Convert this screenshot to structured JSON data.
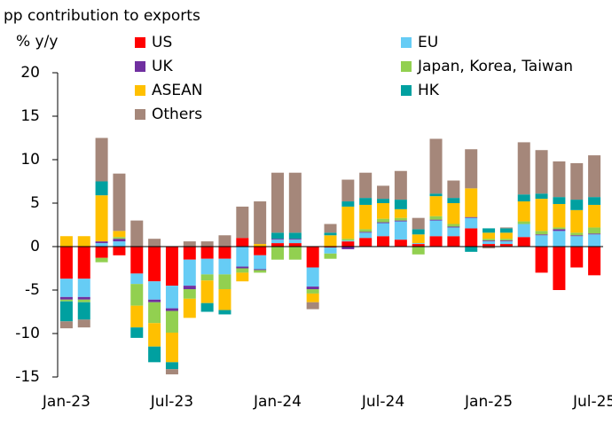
{
  "chart_data": {
    "type": "stacked_bar",
    "title": "pp contribution to exports",
    "y_label": "% y/y",
    "categories": [
      "Jan-23",
      null,
      null,
      null,
      null,
      null,
      "Jul-23",
      null,
      null,
      null,
      null,
      null,
      "Jan-24",
      null,
      null,
      null,
      null,
      null,
      "Jul-24",
      null,
      null,
      null,
      null,
      null,
      "Jan-25",
      null,
      null,
      null,
      null,
      null,
      "Jul-25"
    ],
    "series": [
      {
        "name": "US",
        "color": "#ff0000",
        "values": [
          -3.7,
          -3.7,
          -1.3,
          -1.0,
          -3.1,
          -4.0,
          -4.5,
          -1.5,
          -1.4,
          -1.4,
          1.0,
          -1.0,
          0.4,
          0.4,
          -2.4,
          -0.1,
          0.6,
          1.0,
          1.2,
          0.8,
          0.3,
          1.2,
          1.2,
          2.1,
          0.3,
          0.3,
          1.1,
          -3.0,
          -5.0,
          -2.4,
          -3.3
        ]
      },
      {
        "name": "EU",
        "color": "#66ccf5",
        "values": [
          -2.1,
          -2.1,
          0.4,
          0.6,
          -1.2,
          -2.1,
          -2.6,
          -3.0,
          -1.8,
          -1.8,
          -2.3,
          -1.6,
          0.4,
          0.4,
          -2.2,
          -0.7,
          0.1,
          0.6,
          1.5,
          2.1,
          0.1,
          1.8,
          1.0,
          1.2,
          0.3,
          0.3,
          1.5,
          1.3,
          1.8,
          1.2,
          1.4
        ]
      },
      {
        "name": "UK",
        "color": "#7030a0",
        "values": [
          -0.3,
          -0.3,
          0.2,
          0.3,
          0,
          -0.3,
          -0.3,
          -0.4,
          0,
          0,
          -0.2,
          -0.1,
          0.1,
          0.1,
          -0.3,
          0,
          -0.3,
          0.1,
          0.1,
          0.1,
          0,
          0.1,
          0.1,
          0.1,
          0.1,
          0.1,
          0,
          0.1,
          0.2,
          0.1,
          0.1
        ]
      },
      {
        "name": "Japan, Korea, Taiwan",
        "color": "#92d050",
        "values": [
          -0.2,
          -0.3,
          -0.5,
          0.2,
          -2.5,
          -2.4,
          -2.5,
          -1.1,
          -0.7,
          -1.7,
          -0.5,
          -0.3,
          -1.5,
          -1.5,
          -0.5,
          -0.6,
          0.2,
          0.3,
          0.4,
          0.3,
          -0.9,
          0.4,
          0.3,
          0,
          0.2,
          0.2,
          0.3,
          0.4,
          0.2,
          0.3,
          0.7
        ]
      },
      {
        "name": "ASEAN",
        "color": "#ffc000",
        "values": [
          1.2,
          1.2,
          5.3,
          0.7,
          -2.5,
          -2.7,
          -3.4,
          -2.2,
          -2.6,
          -2.4,
          -1.0,
          0.3,
          0,
          0,
          -1.0,
          1.3,
          3.7,
          2.8,
          1.8,
          1.0,
          1.0,
          2.3,
          2.4,
          3.3,
          0.7,
          0.7,
          2.3,
          3.7,
          2.7,
          2.6,
          2.6
        ]
      },
      {
        "name": "HK",
        "color": "#00a0a0",
        "values": [
          -2.3,
          -2.0,
          1.6,
          0,
          -1.2,
          -1.8,
          -0.8,
          0,
          -1.0,
          -0.5,
          0,
          0,
          0.7,
          0.7,
          0,
          0.3,
          0.6,
          0.8,
          0.5,
          1.1,
          0.6,
          0.3,
          0.6,
          -0.6,
          0.5,
          0.5,
          0.8,
          0.6,
          0.8,
          1.2,
          0.9
        ]
      },
      {
        "name": "Others",
        "color": "#a5877a",
        "values": [
          -0.8,
          -0.9,
          5.0,
          6.6,
          3.0,
          0.9,
          -0.6,
          0.6,
          0.6,
          1.3,
          3.6,
          4.9,
          6.9,
          6.9,
          -0.8,
          1.0,
          2.5,
          2.9,
          1.5,
          3.3,
          1.3,
          6.3,
          2.0,
          4.5,
          -0.2,
          0.1,
          6.0,
          5.0,
          4.1,
          4.2,
          4.8
        ]
      }
    ],
    "ylim": [
      -15,
      20
    ],
    "yticks": [
      -15,
      -10,
      -5,
      0,
      5,
      10,
      15,
      20
    ]
  }
}
